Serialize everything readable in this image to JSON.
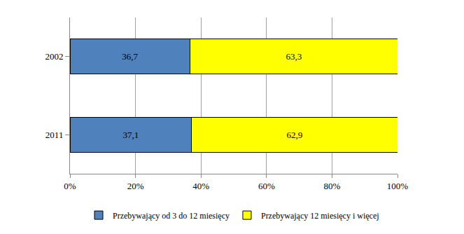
{
  "chart_data": {
    "type": "bar",
    "orientation": "horizontal",
    "stacked": true,
    "categories": [
      "2002",
      "2011"
    ],
    "series": [
      {
        "name": "Przebywający od 3 do 12 miesięcy",
        "color": "#4f81bd",
        "values": [
          36.7,
          37.1
        ],
        "value_labels": [
          "36,7",
          "37,1"
        ]
      },
      {
        "name": "Przebywający 12 miesięcy i więcej",
        "color": "#ffff00",
        "values": [
          63.3,
          62.9
        ],
        "value_labels": [
          "63,3",
          "62,9"
        ]
      }
    ],
    "xlim": [
      0,
      100
    ],
    "xticks": [
      {
        "value": 0,
        "label": "0%"
      },
      {
        "value": 20,
        "label": "20%"
      },
      {
        "value": 40,
        "label": "40%"
      },
      {
        "value": 60,
        "label": "60%"
      },
      {
        "value": 80,
        "label": "80%"
      },
      {
        "value": 100,
        "label": "100%"
      }
    ],
    "grid": true,
    "data_labels": true,
    "legend": "bottom"
  }
}
